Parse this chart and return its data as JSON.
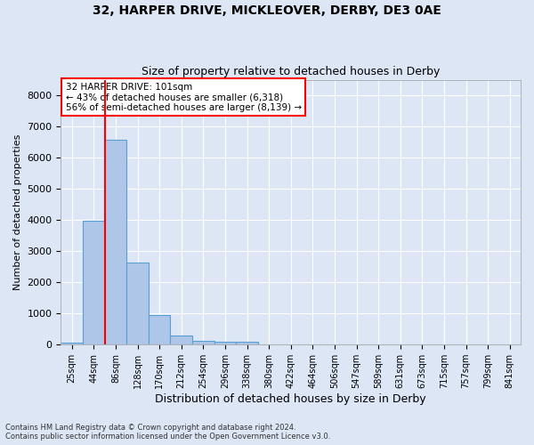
{
  "title_line1": "32, HARPER DRIVE, MICKLEOVER, DERBY, DE3 0AE",
  "title_line2": "Size of property relative to detached houses in Derby",
  "xlabel": "Distribution of detached houses by size in Derby",
  "ylabel": "Number of detached properties",
  "bar_color": "#aec6e8",
  "bar_edge_color": "#5a9fd4",
  "background_color": "#dce6f5",
  "fig_background_color": "#dce6f5",
  "grid_color": "#ffffff",
  "bin_labels": [
    "25sqm",
    "44sqm",
    "86sqm",
    "128sqm",
    "170sqm",
    "212sqm",
    "254sqm",
    "296sqm",
    "338sqm",
    "380sqm",
    "422sqm",
    "464sqm",
    "506sqm",
    "547sqm",
    "589sqm",
    "631sqm",
    "673sqm",
    "715sqm",
    "757sqm",
    "799sqm",
    "841sqm"
  ],
  "bar_values": [
    70,
    3980,
    6580,
    2620,
    950,
    300,
    115,
    100,
    80,
    0,
    0,
    0,
    0,
    0,
    0,
    0,
    0,
    0,
    0,
    0,
    0
  ],
  "ylim": [
    0,
    8500
  ],
  "yticks": [
    0,
    1000,
    2000,
    3000,
    4000,
    5000,
    6000,
    7000,
    8000
  ],
  "property_label": "32 HARPER DRIVE: 101sqm",
  "pct_smaller": 43,
  "pct_smaller_n": "6,318",
  "pct_larger": 56,
  "pct_larger_n": "8,139",
  "vline_x": 1.5,
  "footer_line1": "Contains HM Land Registry data © Crown copyright and database right 2024.",
  "footer_line2": "Contains public sector information licensed under the Open Government Licence v3.0."
}
